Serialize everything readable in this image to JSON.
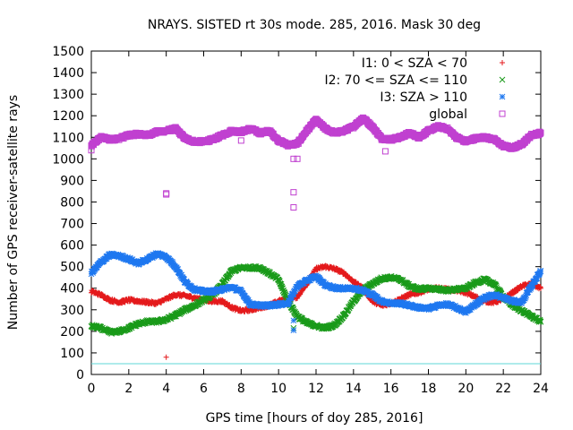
{
  "chart_data": {
    "type": "scatter",
    "title": "NRAYS. SISTED rt 30s mode. 285, 2016. Mask 30 deg",
    "xlabel": "GPS time [hours of doy 285, 2016]",
    "ylabel": "Number of GPS receiver-satellite rays",
    "xlim": [
      0,
      24
    ],
    "ylim": [
      0,
      1500
    ],
    "xticks": [
      0,
      2,
      4,
      6,
      8,
      10,
      12,
      14,
      16,
      18,
      20,
      22,
      24
    ],
    "yticks": [
      0,
      100,
      200,
      300,
      400,
      500,
      600,
      700,
      800,
      900,
      1000,
      1100,
      1200,
      1300,
      1400,
      1500
    ],
    "legend_position": "top-right",
    "reference_line": {
      "y": 50,
      "color": "#5fd7d7"
    },
    "series": [
      {
        "name": "I1: 0 < SZA < 70",
        "marker": "plus",
        "color": "#e41a1c",
        "points": [
          [
            0,
            385
          ],
          [
            0.5,
            370
          ],
          [
            1,
            345
          ],
          [
            1.5,
            335
          ],
          [
            2,
            345
          ],
          [
            2.5,
            340
          ],
          [
            3,
            335
          ],
          [
            3.5,
            330
          ],
          [
            4,
            350
          ],
          [
            4.5,
            370
          ],
          [
            5,
            365
          ],
          [
            5.5,
            355
          ],
          [
            6,
            345
          ],
          [
            6.5,
            340
          ],
          [
            7,
            340
          ],
          [
            7.5,
            310
          ],
          [
            8,
            295
          ],
          [
            8.5,
            300
          ],
          [
            9,
            310
          ],
          [
            9.5,
            320
          ],
          [
            10,
            340
          ],
          [
            10.5,
            350
          ],
          [
            11,
            360
          ],
          [
            11.5,
            420
          ],
          [
            12,
            490
          ],
          [
            12.5,
            500
          ],
          [
            13,
            490
          ],
          [
            13.5,
            470
          ],
          [
            14,
            430
          ],
          [
            14.5,
            400
          ],
          [
            15,
            340
          ],
          [
            15.5,
            320
          ],
          [
            16,
            330
          ],
          [
            16.5,
            350
          ],
          [
            17,
            370
          ],
          [
            17.5,
            380
          ],
          [
            18,
            395
          ],
          [
            18.5,
            400
          ],
          [
            19,
            395
          ],
          [
            19.5,
            390
          ],
          [
            20,
            380
          ],
          [
            20.5,
            360
          ],
          [
            21,
            340
          ],
          [
            21.5,
            335
          ],
          [
            22,
            350
          ],
          [
            22.5,
            380
          ],
          [
            23,
            410
          ],
          [
            23.5,
            420
          ],
          [
            24,
            400
          ]
        ],
        "outliers": [
          [
            4,
            80
          ]
        ]
      },
      {
        "name": "I2: 70 <= SZA <= 110",
        "marker": "cross",
        "color": "#1a9a1a",
        "points": [
          [
            0,
            225
          ],
          [
            0.5,
            215
          ],
          [
            1,
            195
          ],
          [
            1.5,
            200
          ],
          [
            2,
            215
          ],
          [
            2.5,
            235
          ],
          [
            3,
            245
          ],
          [
            3.5,
            245
          ],
          [
            4,
            255
          ],
          [
            4.5,
            275
          ],
          [
            5,
            300
          ],
          [
            5.5,
            320
          ],
          [
            6,
            345
          ],
          [
            6.5,
            370
          ],
          [
            7,
            420
          ],
          [
            7.5,
            480
          ],
          [
            8,
            495
          ],
          [
            8.5,
            495
          ],
          [
            9,
            495
          ],
          [
            9.5,
            470
          ],
          [
            10,
            440
          ],
          [
            10.5,
            340
          ],
          [
            11,
            270
          ],
          [
            11.5,
            240
          ],
          [
            12,
            225
          ],
          [
            12.5,
            215
          ],
          [
            13,
            230
          ],
          [
            13.5,
            275
          ],
          [
            14,
            340
          ],
          [
            14.5,
            390
          ],
          [
            15,
            420
          ],
          [
            15.5,
            445
          ],
          [
            16,
            450
          ],
          [
            16.5,
            440
          ],
          [
            17,
            410
          ],
          [
            17.5,
            395
          ],
          [
            18,
            400
          ],
          [
            18.5,
            395
          ],
          [
            19,
            390
          ],
          [
            19.5,
            395
          ],
          [
            20,
            400
          ],
          [
            20.5,
            425
          ],
          [
            21,
            440
          ],
          [
            21.5,
            420
          ],
          [
            22,
            360
          ],
          [
            22.5,
            320
          ],
          [
            23,
            295
          ],
          [
            23.5,
            270
          ],
          [
            24,
            245
          ]
        ],
        "outliers": [
          [
            10.8,
            215
          ]
        ]
      },
      {
        "name": "I3: SZA > 110",
        "marker": "star",
        "color": "#1f78f0",
        "points": [
          [
            0,
            470
          ],
          [
            0.5,
            520
          ],
          [
            1,
            555
          ],
          [
            1.5,
            550
          ],
          [
            2,
            535
          ],
          [
            2.5,
            515
          ],
          [
            3,
            535
          ],
          [
            3.5,
            560
          ],
          [
            4,
            545
          ],
          [
            4.5,
            500
          ],
          [
            5,
            430
          ],
          [
            5.5,
            395
          ],
          [
            6,
            385
          ],
          [
            6.5,
            385
          ],
          [
            7,
            395
          ],
          [
            7.5,
            405
          ],
          [
            8,
            385
          ],
          [
            8.5,
            325
          ],
          [
            9,
            320
          ],
          [
            9.5,
            320
          ],
          [
            10,
            325
          ],
          [
            10.5,
            330
          ],
          [
            11,
            410
          ],
          [
            11.5,
            435
          ],
          [
            12,
            455
          ],
          [
            12.5,
            415
          ],
          [
            13,
            400
          ],
          [
            13.5,
            400
          ],
          [
            14,
            400
          ],
          [
            14.5,
            390
          ],
          [
            15,
            370
          ],
          [
            15.5,
            340
          ],
          [
            16,
            330
          ],
          [
            16.5,
            330
          ],
          [
            17,
            320
          ],
          [
            17.5,
            310
          ],
          [
            18,
            305
          ],
          [
            18.5,
            320
          ],
          [
            19,
            325
          ],
          [
            19.5,
            310
          ],
          [
            20,
            290
          ],
          [
            20.5,
            325
          ],
          [
            21,
            355
          ],
          [
            21.5,
            370
          ],
          [
            22,
            355
          ],
          [
            22.5,
            340
          ],
          [
            23,
            335
          ],
          [
            23.5,
            410
          ],
          [
            24,
            480
          ]
        ],
        "outliers": [
          [
            10.8,
            205
          ],
          [
            10.8,
            250
          ]
        ]
      },
      {
        "name": "global",
        "marker": "square",
        "color": "#c040d0",
        "points": [
          [
            0,
            1060
          ],
          [
            0.5,
            1100
          ],
          [
            1,
            1090
          ],
          [
            1.5,
            1095
          ],
          [
            2,
            1110
          ],
          [
            2.5,
            1115
          ],
          [
            3,
            1110
          ],
          [
            3.5,
            1125
          ],
          [
            4,
            1130
          ],
          [
            4.5,
            1140
          ],
          [
            5,
            1095
          ],
          [
            5.5,
            1080
          ],
          [
            6,
            1080
          ],
          [
            6.5,
            1090
          ],
          [
            7,
            1110
          ],
          [
            7.5,
            1130
          ],
          [
            8,
            1125
          ],
          [
            8.5,
            1140
          ],
          [
            9,
            1120
          ],
          [
            9.5,
            1130
          ],
          [
            10,
            1085
          ],
          [
            10.5,
            1065
          ],
          [
            11,
            1070
          ],
          [
            11.5,
            1130
          ],
          [
            12,
            1180
          ],
          [
            12.5,
            1140
          ],
          [
            13,
            1120
          ],
          [
            13.5,
            1130
          ],
          [
            14,
            1150
          ],
          [
            14.5,
            1190
          ],
          [
            15,
            1150
          ],
          [
            15.5,
            1095
          ],
          [
            16,
            1090
          ],
          [
            16.5,
            1100
          ],
          [
            17,
            1120
          ],
          [
            17.5,
            1100
          ],
          [
            18,
            1130
          ],
          [
            18.5,
            1150
          ],
          [
            19,
            1140
          ],
          [
            19.5,
            1100
          ],
          [
            20,
            1080
          ],
          [
            20.5,
            1095
          ],
          [
            21,
            1100
          ],
          [
            21.5,
            1090
          ],
          [
            22,
            1060
          ],
          [
            22.5,
            1050
          ],
          [
            23,
            1070
          ],
          [
            23.5,
            1110
          ],
          [
            24,
            1120
          ]
        ],
        "outliers": [
          [
            0,
            1040
          ],
          [
            4,
            835
          ],
          [
            4,
            840
          ],
          [
            8,
            1085
          ],
          [
            10.8,
            845
          ],
          [
            10.8,
            775
          ],
          [
            10.8,
            1000
          ],
          [
            11,
            1000
          ],
          [
            15.7,
            1035
          ]
        ]
      }
    ]
  }
}
